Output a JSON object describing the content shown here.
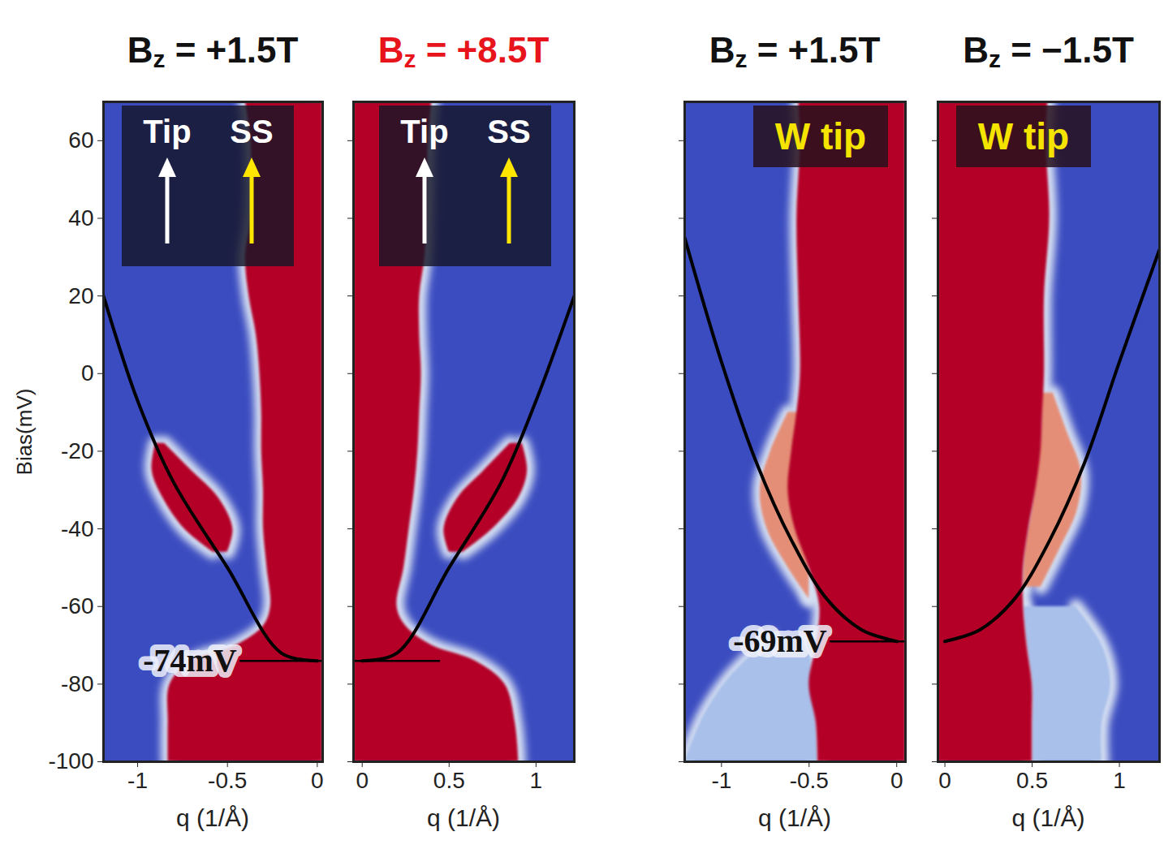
{
  "chart_data": [
    {
      "type": "heatmap",
      "title": "Bz = +1.5T",
      "xlabel": "q (1/Å)",
      "ylabel": "Bias(mV)",
      "xlim": [
        -1.19,
        0.03
      ],
      "ylim": [
        -100,
        70
      ],
      "xticks": [
        -1,
        -0.5,
        0
      ],
      "yticks": [
        -100,
        -80,
        -60,
        -40,
        -20,
        0,
        20,
        40,
        60
      ],
      "color": "#3b4cc0",
      "inset": [
        "Tip",
        "SS"
      ],
      "bands": [
        {
          "color": "#b40426",
          "bias": [
            70,
            60,
            40,
            30,
            20,
            10,
            0,
            -10,
            -20,
            -30,
            -40,
            -50,
            -60,
            -65,
            -70,
            -74,
            -80,
            -90,
            -100
          ],
          "q_low": [
            -0.4,
            -0.37,
            -0.37,
            -0.4,
            -0.38,
            -0.34,
            -0.32,
            -0.31,
            -0.31,
            -0.3,
            -0.3,
            -0.28,
            -0.26,
            -0.3,
            -0.45,
            -0.7,
            -0.82,
            -0.83,
            -0.83
          ],
          "q_high": [
            0.03,
            0.03,
            0.03,
            0.03,
            0.03,
            0.03,
            0.03,
            0.03,
            0.03,
            0.03,
            0.03,
            0.03,
            0.03,
            0.03,
            0.03,
            0.03,
            0.03,
            0.03,
            0.03
          ]
        },
        {
          "color": "#b40426",
          "bias": [
            -18,
            -25,
            -32,
            -40,
            -46
          ],
          "q_low": [
            -0.9,
            -0.92,
            -0.86,
            -0.74,
            -0.58
          ],
          "q_high": [
            -0.85,
            -0.7,
            -0.55,
            -0.47,
            -0.5
          ]
        }
      ],
      "curve": {
        "color": "#000000",
        "q": [
          -1.19,
          -1.0,
          -0.8,
          -0.5,
          -0.2,
          0
        ],
        "bias": [
          20,
          -7,
          -28,
          -50,
          -72,
          -74
        ]
      },
      "annotations": [
        {
          "text": "-74mV",
          "q": -0.43,
          "q_end": 0.03,
          "bias": -74
        }
      ]
    },
    {
      "type": "heatmap",
      "title": "Bz = +8.5T",
      "xlabel": "q (1/Å)",
      "tick_labels": "x",
      "xlim": [
        -0.05,
        1.22
      ],
      "ylim": [
        -100,
        70
      ],
      "xticks": [
        0,
        0.5,
        1
      ],
      "yticks": [
        -100,
        -80,
        -60,
        -40,
        -20,
        0,
        20,
        40,
        60
      ],
      "color": "#3b4cc0",
      "inset": [
        "Tip",
        "SS"
      ],
      "bands": [
        {
          "color": "#b40426",
          "bias": [
            70,
            60,
            40,
            30,
            20,
            10,
            0,
            -10,
            -20,
            -30,
            -40,
            -50,
            -60,
            -65,
            -70,
            -74,
            -80,
            -90,
            -100
          ],
          "q_low": [
            -0.05,
            -0.05,
            -0.05,
            -0.05,
            -0.05,
            -0.05,
            -0.05,
            -0.05,
            -0.05,
            -0.05,
            -0.05,
            -0.05,
            -0.05,
            -0.05,
            -0.05,
            -0.05,
            -0.05,
            -0.05,
            -0.05
          ],
          "q_high": [
            0.4,
            0.38,
            0.37,
            0.36,
            0.33,
            0.33,
            0.34,
            0.33,
            0.32,
            0.3,
            0.27,
            0.24,
            0.2,
            0.25,
            0.4,
            0.65,
            0.82,
            0.88,
            0.9
          ]
        },
        {
          "color": "#b40426",
          "bias": [
            -18,
            -25,
            -32,
            -40,
            -46
          ],
          "q_low": [
            0.85,
            0.7,
            0.55,
            0.47,
            0.5
          ],
          "q_high": [
            0.92,
            0.95,
            0.9,
            0.75,
            0.58
          ]
        }
      ],
      "curve": {
        "color": "#000000",
        "q": [
          0,
          0.2,
          0.5,
          0.8,
          1.0,
          1.22
        ],
        "bias": [
          -74,
          -72,
          -50,
          -28,
          -7,
          20
        ]
      },
      "annotations": [
        {
          "q": -0.05,
          "q_end": 0.45,
          "bias": -74
        }
      ]
    },
    {
      "type": "heatmap",
      "title": "Bz = +1.5T",
      "xlabel": "q (1/Å)",
      "tick_labels": "x",
      "xlim": [
        -1.21,
        0.05
      ],
      "ylim": [
        -100,
        70
      ],
      "xticks": [
        -1,
        -0.5,
        0
      ],
      "yticks": [
        -100,
        -80,
        -60,
        -40,
        -20,
        0,
        20,
        40,
        60
      ],
      "color": "#3b4cc0",
      "inset": [
        "W tip"
      ],
      "bands": [
        {
          "color": "#a9c0ea",
          "bias": [
            -68,
            -78,
            -88,
            -100
          ],
          "q_low": [
            -0.72,
            -0.95,
            -1.1,
            -1.21
          ],
          "q_high": [
            -0.5,
            -0.48,
            -0.46,
            -0.45
          ]
        },
        {
          "color": "#e58e77",
          "bias": [
            -10,
            -20,
            -30,
            -40,
            -50,
            -58
          ],
          "q_low": [
            -0.62,
            -0.72,
            -0.78,
            -0.74,
            -0.62,
            -0.5
          ],
          "q_high": [
            -0.5,
            -0.5,
            -0.5,
            -0.5,
            -0.5,
            -0.5
          ]
        },
        {
          "color": "#b40426",
          "bias": [
            70,
            60,
            40,
            20,
            0,
            -10,
            -20,
            -30,
            -40,
            -50,
            -60,
            -70,
            -80,
            -90,
            -100
          ],
          "q_low": [
            -0.56,
            -0.55,
            -0.57,
            -0.56,
            -0.55,
            -0.57,
            -0.6,
            -0.62,
            -0.58,
            -0.5,
            -0.44,
            -0.46,
            -0.5,
            -0.46,
            -0.45
          ],
          "q_high": [
            0.05,
            0.05,
            0.05,
            0.05,
            0.05,
            0.05,
            0.05,
            0.05,
            0.05,
            0.05,
            0.05,
            0.05,
            0.05,
            0.05,
            0.05
          ]
        }
      ],
      "curve": {
        "color": "#000000",
        "q": [
          -1.21,
          -1.0,
          -0.8,
          -0.6,
          -0.4,
          -0.2,
          0
        ],
        "bias": [
          35,
          3,
          -23,
          -43,
          -58,
          -66,
          -69
        ]
      },
      "annotations": [
        {
          "text": "-69mV",
          "q": -0.38,
          "q_end": 0.05,
          "bias": -69
        }
      ]
    },
    {
      "type": "heatmap",
      "title": "Bz = −1.5T",
      "xlabel": "q (1/Å)",
      "tick_labels": "x",
      "xlim": [
        -0.04,
        1.23
      ],
      "ylim": [
        -100,
        70
      ],
      "xticks": [
        0,
        0.5,
        1
      ],
      "yticks": [
        -100,
        -80,
        -60,
        -40,
        -20,
        0,
        20,
        40,
        60
      ],
      "color": "#3b4cc0",
      "inset": [
        "W tip"
      ],
      "bands": [
        {
          "color": "#a9c0ea",
          "bias": [
            -60,
            -70,
            -80,
            -90,
            -100
          ],
          "q_low": [
            0.45,
            0.47,
            0.5,
            0.5,
            0.5
          ],
          "q_high": [
            0.75,
            0.9,
            0.95,
            0.9,
            0.9
          ]
        },
        {
          "color": "#e58e77",
          "bias": [
            -5,
            -15,
            -25,
            -35,
            -45,
            -55
          ],
          "q_low": [
            0.55,
            0.55,
            0.52,
            0.5,
            0.46,
            0.45
          ],
          "q_high": [
            0.62,
            0.7,
            0.78,
            0.76,
            0.66,
            0.55
          ]
        },
        {
          "color": "#b40426",
          "bias": [
            70,
            60,
            40,
            20,
            0,
            -10,
            -20,
            -30,
            -40,
            -50,
            -60,
            -70,
            -80,
            -90,
            -100
          ],
          "q_low": [
            -0.04,
            -0.04,
            -0.04,
            -0.04,
            -0.04,
            -0.04,
            -0.04,
            -0.04,
            -0.04,
            -0.04,
            -0.04,
            -0.04,
            -0.04,
            -0.04,
            -0.04
          ],
          "q_high": [
            0.59,
            0.58,
            0.6,
            0.57,
            0.57,
            0.56,
            0.55,
            0.52,
            0.48,
            0.45,
            0.45,
            0.47,
            0.5,
            0.5,
            0.5
          ]
        }
      ],
      "curve": {
        "color": "#000000",
        "q": [
          0,
          0.2,
          0.4,
          0.6,
          0.8,
          1.0,
          1.23
        ],
        "bias": [
          -69,
          -66,
          -58,
          -43,
          -23,
          3,
          32
        ]
      },
      "annotations": []
    }
  ]
}
